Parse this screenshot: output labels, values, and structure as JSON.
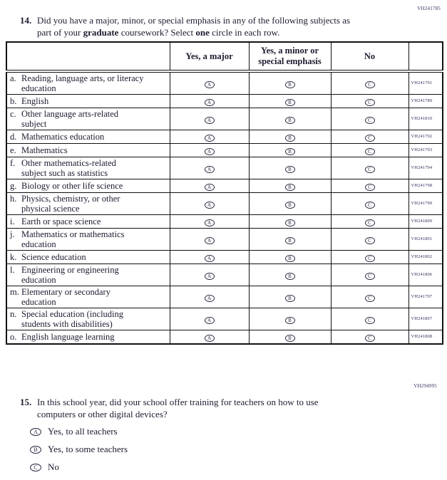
{
  "page": {
    "code_top": "VH241785",
    "code_mid": "VH294995"
  },
  "q14": {
    "number": "14.",
    "part1": "Did you have a major, minor, or special emphasis in any of the following subjects as\npart of your ",
    "bold1": "graduate",
    "part2": " coursework? Select ",
    "bold2": "one",
    "part3": " circle in each row."
  },
  "table": {
    "col_major": "Yes, a major",
    "col_minor": "Yes, a minor or\nspecial emphasis",
    "col_no": "No",
    "rows": [
      {
        "letter": "a.",
        "label": "Reading, language arts, or literacy\neducation",
        "code": "VH241791"
      },
      {
        "letter": "b.",
        "label": "English",
        "code": "VH241789"
      },
      {
        "letter": "c.",
        "label": "Other language arts-related\nsubject",
        "code": "VH241810"
      },
      {
        "letter": "d.",
        "label": "Mathematics education",
        "code": "VH241792"
      },
      {
        "letter": "e.",
        "label": "Mathematics",
        "code": "VH241793"
      },
      {
        "letter": "f.",
        "label": "Other mathematics-related\nsubject such as statistics",
        "code": "VH241794"
      },
      {
        "letter": "g.",
        "label": "Biology or other life science",
        "code": "VH241798"
      },
      {
        "letter": "h.",
        "label": "Physics, chemistry, or other\nphysical science",
        "code": "VH241799"
      },
      {
        "letter": "i.",
        "label": "Earth or space science",
        "code": "VH241800"
      },
      {
        "letter": "j.",
        "label": "Mathematics or mathematics\neducation",
        "code": "VH241801"
      },
      {
        "letter": "k.",
        "label": "Science education",
        "code": "VH241802"
      },
      {
        "letter": "l.",
        "label": "Engineering or engineering\neducation",
        "code": "VH241806"
      },
      {
        "letter": "m.",
        "label": "Elementary or secondary\neducation",
        "code": "VH241797"
      },
      {
        "letter": "n.",
        "label": "Special education (including\nstudents with disabilities)",
        "code": "VH241807"
      },
      {
        "letter": "o.",
        "label": "English language learning",
        "code": "VH241808"
      }
    ]
  },
  "bubbles": {
    "major": "A",
    "minor": "B",
    "no": "C"
  },
  "q15": {
    "number": "15.",
    "text": "In this school year, did your school offer training for teachers on how to use\ncomputers or other digital devices?",
    "options": [
      {
        "letter": "A",
        "label": "Yes, to all teachers"
      },
      {
        "letter": "B",
        "label": "Yes, to some teachers"
      },
      {
        "letter": "C",
        "label": "No"
      }
    ]
  }
}
